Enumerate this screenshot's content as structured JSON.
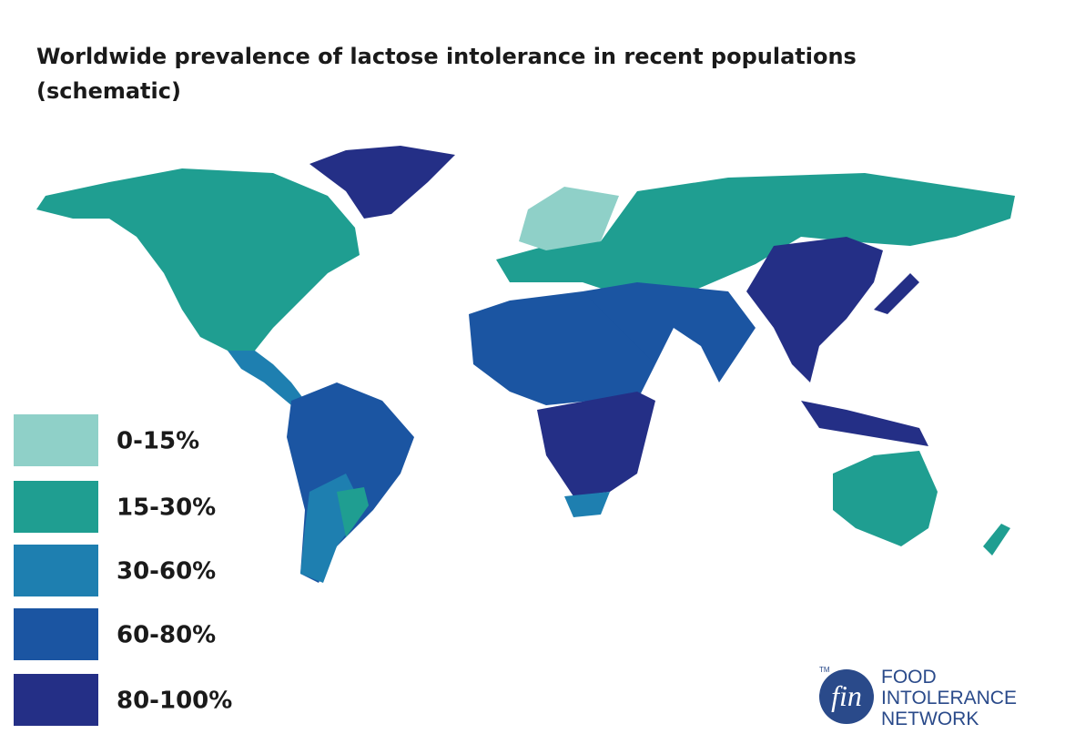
{
  "title": "Worldwide prevalence of lactose intolerance in recent populations (schematic)",
  "legend": [
    {
      "label": "0-15%",
      "color": "#8fd0c8"
    },
    {
      "label": "15-30%",
      "color": "#1f9e91"
    },
    {
      "label": "30-60%",
      "color": "#1e7fb0"
    },
    {
      "label": "60-80%",
      "color": "#1b55a2"
    },
    {
      "label": "80-100%",
      "color": "#242f86"
    }
  ],
  "logo": {
    "mark": "fin",
    "trademark": "TM",
    "lines": [
      "FOOD",
      "INTOLERANCE",
      "NETWORK"
    ]
  }
}
